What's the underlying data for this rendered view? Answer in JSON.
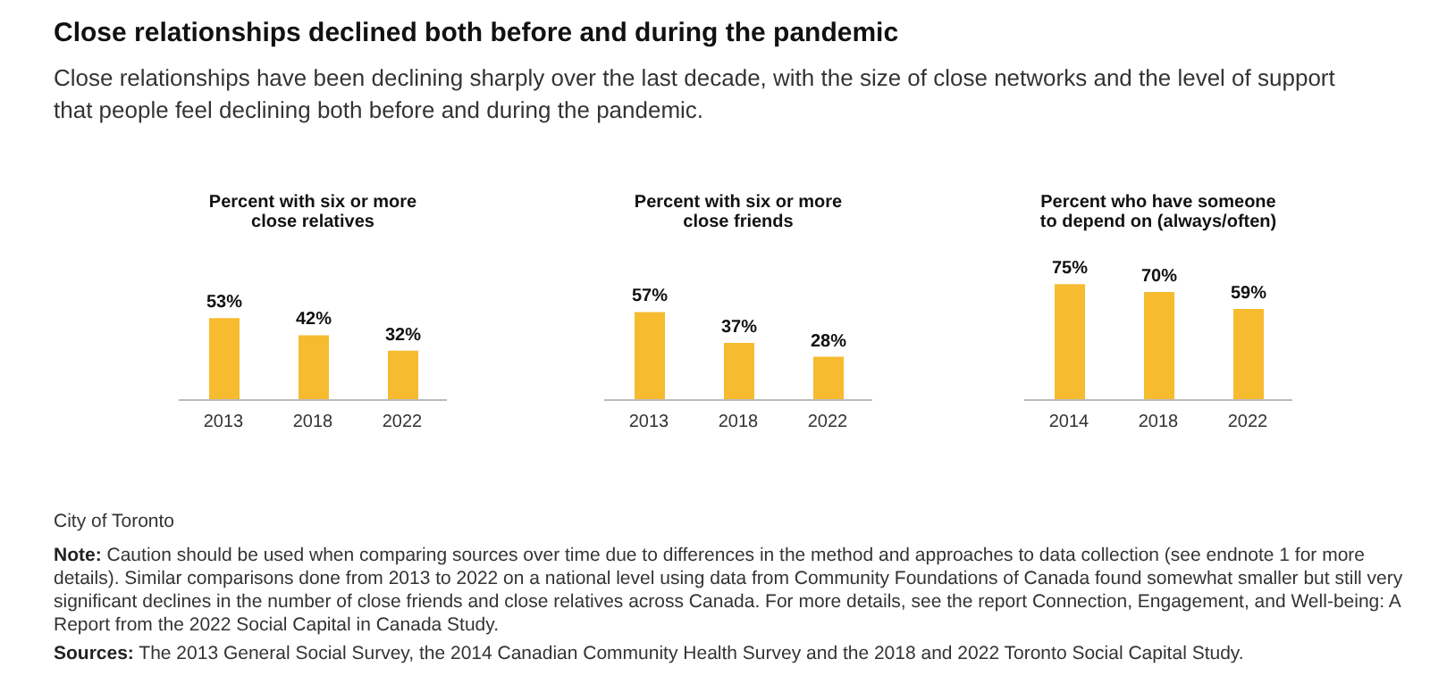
{
  "chart_data": [
    {
      "type": "other",
      "title": "Close relationships declined both before and during the pandemic",
      "subtitle": "Close relationships have been declining sharply over the last decade, with the size of close networks and the level of support that people feel declining both before and during the pandemic."
    },
    {
      "type": "bar",
      "title": "Percent with six or more close relatives",
      "categories": [
        "2013",
        "2018",
        "2022"
      ],
      "values": [
        53,
        42,
        32
      ],
      "value_labels": [
        "53%",
        "42%",
        "32%"
      ],
      "color": "#f6bb2e",
      "tick_labels": "x"
    },
    {
      "type": "bar",
      "title": "Percent with six or more close friends",
      "categories": [
        "2013",
        "2018",
        "2022"
      ],
      "values": [
        57,
        37,
        28
      ],
      "value_labels": [
        "57%",
        "37%",
        "28%"
      ],
      "color": "#f6bb2e",
      "tick_labels": "x"
    },
    {
      "type": "bar",
      "title": "Percent who have someone to depend on (always/often)",
      "categories": [
        "2014",
        "2018",
        "2022"
      ],
      "values": [
        75,
        70,
        59
      ],
      "value_labels": [
        "75%",
        "70%",
        "59%"
      ],
      "color": "#f6bb2e",
      "tick_labels": "x"
    },
    {
      "type": "other",
      "annotations": [
        "City of Toronto",
        "Note: Caution should be used when comparing sources over time due to differences in the method and approaches to data collection (see endnote 1 for more details). Similar comparisons done from 2013 to 2022 on a national level using data from Community Foundations of Canada found somewhat smaller but still very significant declines in the number of close friends and close relatives across Canada. For more details, see the report Connection, Engagement, and Well-being: A Report from the 2022 Social Capital in Canada Study.",
        "Sources: The 2013 General Social Survey, the 2014 Canadian Community Health Survey and the 2018 and 2022 Toronto Social Capital Study."
      ]
    }
  ]
}
